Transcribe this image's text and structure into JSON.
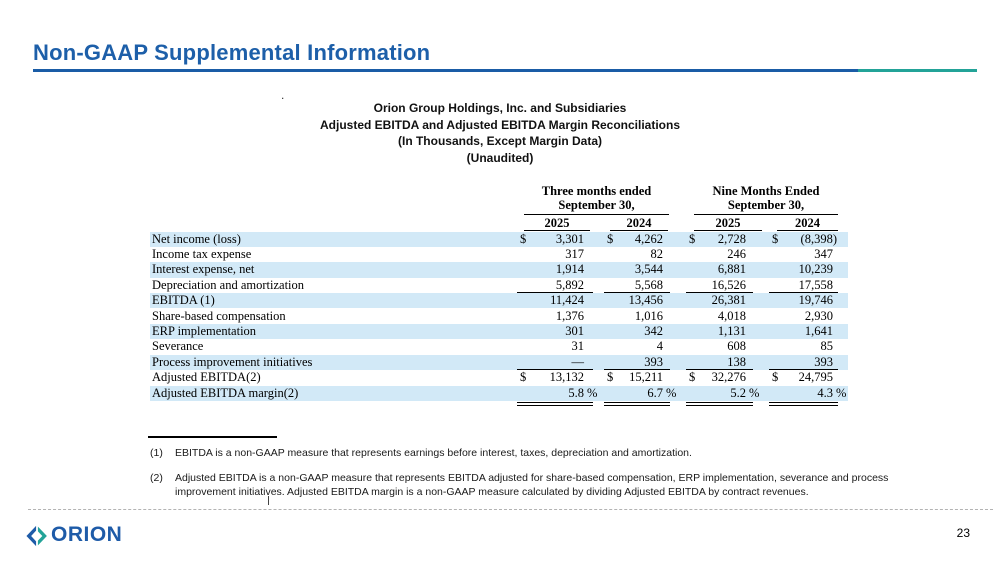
{
  "slide": {
    "title": "Non-GAAP Supplemental Information",
    "page_number": "23",
    "logo_text": "ORION",
    "stray_dot": ".",
    "logo_icon": "orion-diamond-chevrons"
  },
  "colors": {
    "title_blue": "#1d5fa9",
    "rule_blue": "#1a5ca6",
    "rule_teal": "#23a398",
    "row_highlight": "#d2e9f7",
    "logo_blue": "#1e5ba8",
    "logo_teal": "#23a398"
  },
  "table": {
    "caption_lines": [
      "Orion Group Holdings, Inc. and Subsidiaries",
      "Adjusted EBITDA and Adjusted EBITDA Margin Reconciliations",
      "(In Thousands, Except Margin Data)",
      "(Unaudited)"
    ],
    "dollar_sign": "$",
    "percent_sign": "%",
    "col_groups": [
      {
        "label": "Three months ended",
        "label2": "September 30,",
        "years": [
          "2025",
          "2024"
        ]
      },
      {
        "label": "Nine Months Ended",
        "label2": "September 30,",
        "years": [
          "2025",
          "2024"
        ]
      }
    ],
    "rows": [
      {
        "label": "Net income (loss)",
        "values": [
          "3,301",
          "4,262",
          "2,728",
          "(8,398)"
        ],
        "dollar": true,
        "highlight": true
      },
      {
        "label": "Income tax expense",
        "values": [
          "317",
          "82",
          "246",
          "347"
        ]
      },
      {
        "label": "Interest expense, net",
        "values": [
          "1,914",
          "3,544",
          "6,881",
          "10,239"
        ],
        "highlight": true
      },
      {
        "label": "Depreciation and amortization",
        "values": [
          "5,892",
          "5,568",
          "16,526",
          "17,558"
        ],
        "underline_below": true
      },
      {
        "label": "EBITDA (1)",
        "values": [
          "11,424",
          "13,456",
          "26,381",
          "19,746"
        ],
        "highlight": true
      },
      {
        "label": "Share-based compensation",
        "values": [
          "1,376",
          "1,016",
          "4,018",
          "2,930"
        ]
      },
      {
        "label": "ERP implementation",
        "values": [
          "301",
          "342",
          "1,131",
          "1,641"
        ],
        "highlight": true
      },
      {
        "label": "Severance",
        "values": [
          "31",
          "4",
          "608",
          "85"
        ]
      },
      {
        "label": "Process improvement initiatives",
        "values": [
          "—",
          "393",
          "138",
          "393"
        ],
        "highlight": true,
        "underline_below": true
      },
      {
        "label": "Adjusted EBITDA(2)",
        "values": [
          "13,132",
          "15,211",
          "32,276",
          "24,795"
        ],
        "dollar": true,
        "double_underline": true
      },
      {
        "label": "Adjusted EBITDA margin(2)",
        "values": [
          "5.8",
          "6.7",
          "5.2",
          "4.3"
        ],
        "percent": true,
        "highlight": true,
        "double_underline": true
      }
    ]
  },
  "footnotes": [
    {
      "marker": "(1)",
      "lines": [
        "EBITDA is a non-GAAP measure that represents earnings before interest, taxes, depreciation and amortization."
      ]
    },
    {
      "marker": "(2)",
      "lines": [
        "Adjusted EBITDA is a non-GAAP measure that represents EBITDA adjusted for share-based compensation, ERP implementation, severance and process",
        "improvement initiatives. Adjusted EBITDA margin is a non-GAAP measure calculated by dividing Adjusted EBITDA by contract revenues."
      ]
    }
  ]
}
